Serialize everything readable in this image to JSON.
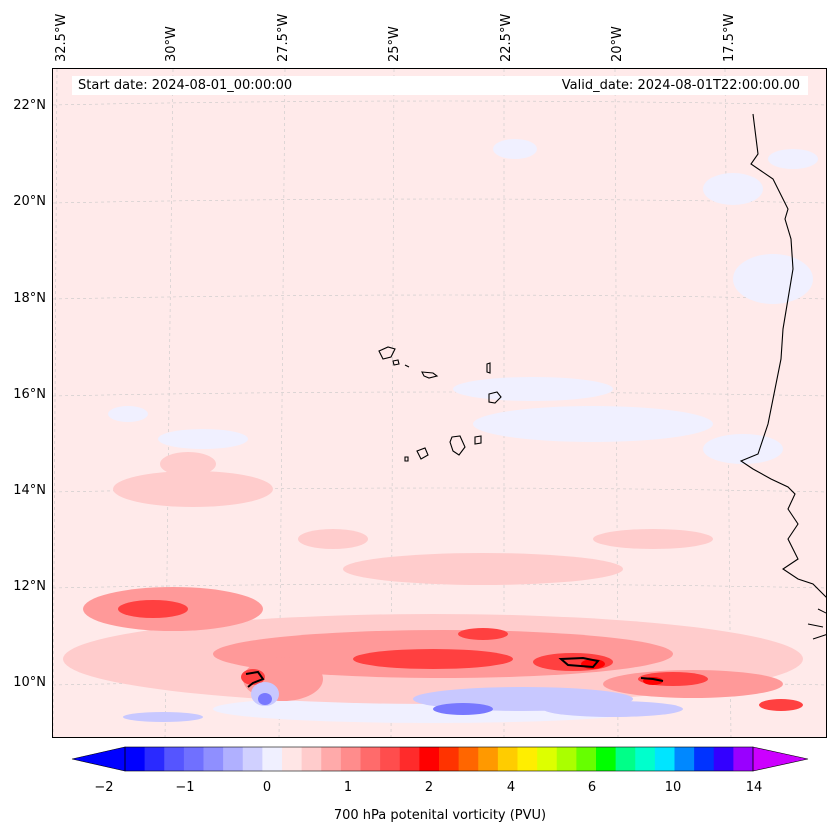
{
  "map": {
    "start_date": "Start date: 2024-08-01_00:00:00",
    "valid_date": "Valid_date: 2024-08-01T22:00:00.00",
    "lon_labels": [
      "32.5°W",
      "30°W",
      "27.5°W",
      "25°W",
      "22.5°W",
      "20°W",
      "17.5°W"
    ],
    "lat_labels": [
      "22°N",
      "20°N",
      "18°N",
      "16°N",
      "14°N",
      "12°N",
      "10°N"
    ],
    "colors": {
      "background": "#ffeaea",
      "coast": "#000000"
    }
  },
  "colorbar": {
    "label": "700 hPa potenital vorticity (PVU)",
    "tick_labels": [
      "−2",
      "−1",
      "0",
      "1",
      "2",
      "4",
      "6",
      "10",
      "14"
    ],
    "colors": [
      "#0000ff",
      "#2a2aff",
      "#5555ff",
      "#7070ff",
      "#8f8fff",
      "#b0b0ff",
      "#d0d0ff",
      "#f0f0ff",
      "#ffe6e6",
      "#ffcccc",
      "#ffaaaa",
      "#ff8c8c",
      "#ff6b6b",
      "#ff4d4d",
      "#ff2b2b",
      "#ff0000",
      "#ff3300",
      "#ff6600",
      "#ff9900",
      "#ffcc00",
      "#ffee00",
      "#ddff00",
      "#aaff00",
      "#66ff00",
      "#00ff00",
      "#00ff88",
      "#00ffcc",
      "#00e5ff",
      "#0088ff",
      "#0033ff",
      "#3300ff",
      "#9900ff"
    ],
    "extend_low_color": "#0000ff",
    "extend_high_color": "#cc00ff"
  }
}
